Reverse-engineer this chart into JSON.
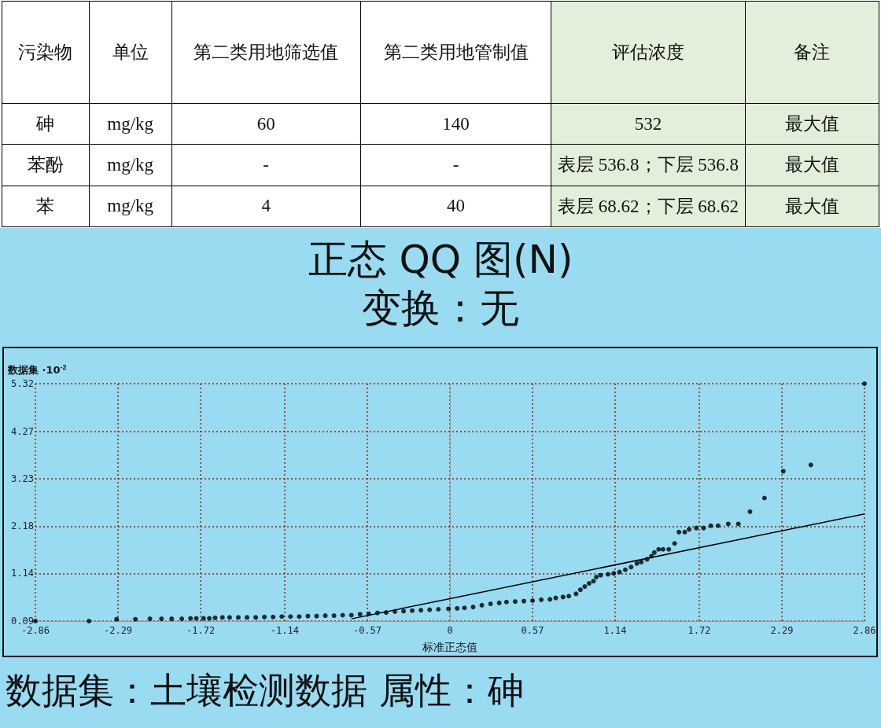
{
  "chart_data": [
    {
      "type": "other",
      "categories": [
        "污染物",
        "单位",
        "第二类用地筛选值",
        "第二类用地管制值",
        "评估浓度",
        "备注"
      ],
      "annotations": [
        "砷",
        "mg/kg",
        "60",
        "140",
        "532",
        "最大值",
        "苯酚",
        "mg/kg",
        "-",
        "-",
        "表层 536.8；下层 536.8",
        "最大值",
        "苯",
        "mg/kg",
        "4",
        "40",
        "表层 68.62；下层 68.62",
        "最大值"
      ]
    },
    {
      "type": "scatter",
      "title": "正态 QQ 图(N)",
      "subtitle": "变换：无",
      "xlabel": "标准正态值",
      "ylabel": "数据集 ·10$^{-2}$",
      "annotations": [
        "数据集：土壤检测数据 属性：砷"
      ],
      "xlim": [
        -2.86,
        2.86
      ],
      "xticks": [
        -2.86,
        -2.29,
        -1.72,
        -1.14,
        -0.57,
        0,
        0.57,
        1.14,
        1.72,
        2.29,
        2.86
      ],
      "ylim": [
        0.09,
        5.32
      ],
      "yticks": [
        0.09,
        1.14,
        2.18,
        3.23,
        4.27,
        5.32
      ],
      "grid": true,
      "series": [
        {
          "type": "scatter",
          "marker": "circle",
          "color": "#000000",
          "x": [
            -2.86,
            -2.49,
            -2.3,
            -2.17,
            -2.07,
            -1.99,
            -1.92,
            -1.85,
            -1.79,
            -1.75,
            -1.7,
            -1.66,
            -1.62,
            -1.57,
            -1.52,
            -1.46,
            -1.4,
            -1.34,
            -1.28,
            -1.22,
            -1.16,
            -1.1,
            -1.04,
            -0.98,
            -0.92,
            -0.86,
            -0.8,
            -0.74,
            -0.68,
            -0.62,
            -0.56,
            -0.5,
            -0.44,
            -0.38,
            -0.32,
            -0.26,
            -0.2,
            -0.14,
            -0.08,
            -0.01,
            0.05,
            0.1,
            0.16,
            0.22,
            0.28,
            0.34,
            0.39,
            0.45,
            0.51,
            0.57,
            0.63,
            0.69,
            0.73,
            0.78,
            0.82,
            0.87,
            0.9,
            0.93,
            0.96,
            0.99,
            1.01,
            1.04,
            1.09,
            1.13,
            1.17,
            1.21,
            1.25,
            1.29,
            1.32,
            1.36,
            1.39,
            1.41,
            1.44,
            1.47,
            1.51,
            1.55,
            1.58,
            1.62,
            1.65,
            1.7,
            1.75,
            1.8,
            1.85,
            1.92,
            1.99,
            2.07,
            2.17,
            2.3,
            2.49,
            2.86
          ],
          "values": [
            0.09,
            0.09,
            0.13,
            0.13,
            0.14,
            0.14,
            0.14,
            0.14,
            0.15,
            0.15,
            0.15,
            0.15,
            0.16,
            0.17,
            0.17,
            0.17,
            0.17,
            0.17,
            0.18,
            0.18,
            0.19,
            0.19,
            0.19,
            0.2,
            0.2,
            0.21,
            0.21,
            0.22,
            0.22,
            0.24,
            0.25,
            0.27,
            0.28,
            0.3,
            0.31,
            0.32,
            0.33,
            0.34,
            0.35,
            0.36,
            0.37,
            0.38,
            0.4,
            0.44,
            0.47,
            0.49,
            0.51,
            0.52,
            0.53,
            0.54,
            0.56,
            0.57,
            0.6,
            0.62,
            0.64,
            0.69,
            0.78,
            0.85,
            0.92,
            0.97,
            1.06,
            1.1,
            1.12,
            1.14,
            1.17,
            1.22,
            1.28,
            1.36,
            1.39,
            1.45,
            1.52,
            1.6,
            1.67,
            1.67,
            1.67,
            1.8,
            2.05,
            2.05,
            2.11,
            2.14,
            2.14,
            2.19,
            2.19,
            2.23,
            2.23,
            2.5,
            2.8,
            3.39,
            3.53,
            5.32
          ]
        },
        {
          "type": "line",
          "marker": "none",
          "color": "#000000",
          "x": [
            -0.68,
            2.86
          ],
          "values": [
            0.14,
            2.45
          ]
        }
      ]
    }
  ]
}
